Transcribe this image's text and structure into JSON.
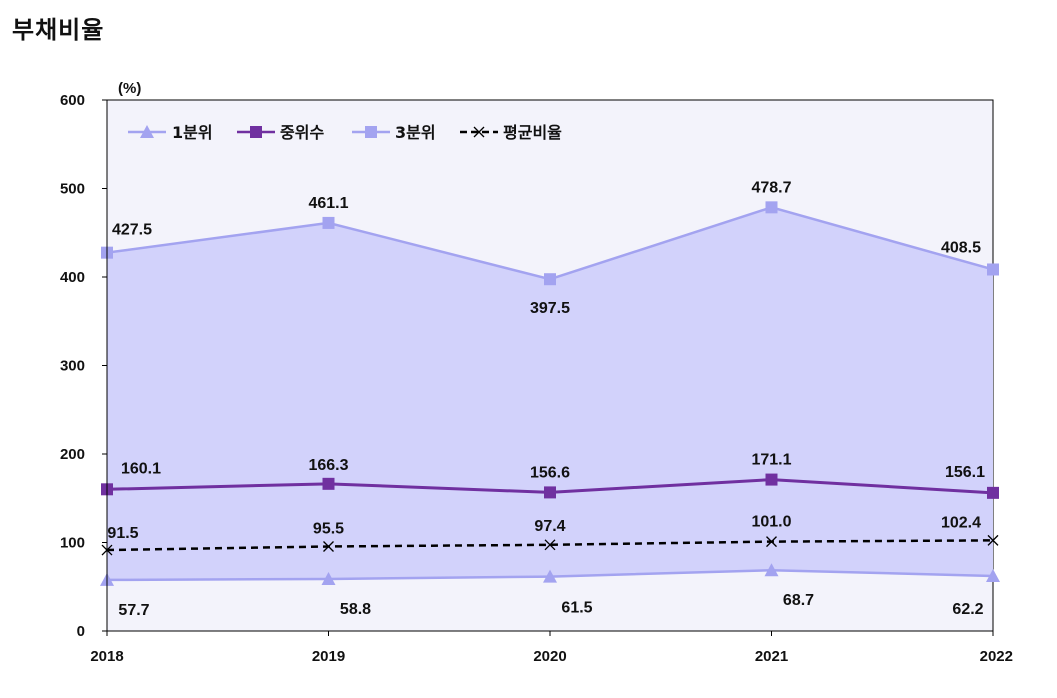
{
  "page": {
    "title": "부채비율"
  },
  "colors": {
    "q1": "#a3a3f0",
    "median": "#7030a0",
    "q3": "#a3a3f0",
    "average": "#000000",
    "area_fill": "#d2d2fb",
    "plot_bg": "#f3f3fb"
  },
  "chart_data": {
    "type": "line",
    "title": "부채비율",
    "ylabel": "(%)",
    "xlabel": "",
    "x": [
      "2018",
      "2019",
      "2020",
      "2021",
      "2022"
    ],
    "ylim": [
      0,
      600
    ],
    "yticks": [
      "0",
      "100",
      "200",
      "300",
      "400",
      "500",
      "600"
    ],
    "legend_position": "top-left",
    "grid": false,
    "series": [
      {
        "name": "1분위",
        "key": "q1",
        "marker": "triangle",
        "values": [
          57.7,
          58.8,
          61.5,
          68.7,
          62.2
        ],
        "labels": [
          "57.7",
          "58.8",
          "61.5",
          "68.7",
          "62.2"
        ]
      },
      {
        "name": "중위수",
        "key": "median",
        "marker": "square",
        "values": [
          160.1,
          166.3,
          156.6,
          171.1,
          156.1
        ],
        "labels": [
          "160.1",
          "166.3",
          "156.6",
          "171.1",
          "156.1"
        ]
      },
      {
        "name": "3분위",
        "key": "q3",
        "marker": "square",
        "values": [
          427.5,
          461.1,
          397.5,
          478.7,
          408.5
        ],
        "labels": [
          "427.5",
          "461.1",
          "397.5",
          "478.7",
          "408.5"
        ]
      },
      {
        "name": "평균비율",
        "key": "average",
        "marker": "x",
        "dashed": true,
        "values": [
          91.5,
          95.5,
          97.4,
          101.0,
          102.4
        ],
        "labels": [
          "91.5",
          "95.5",
          "97.4",
          "101.0",
          "102.4"
        ]
      }
    ]
  }
}
